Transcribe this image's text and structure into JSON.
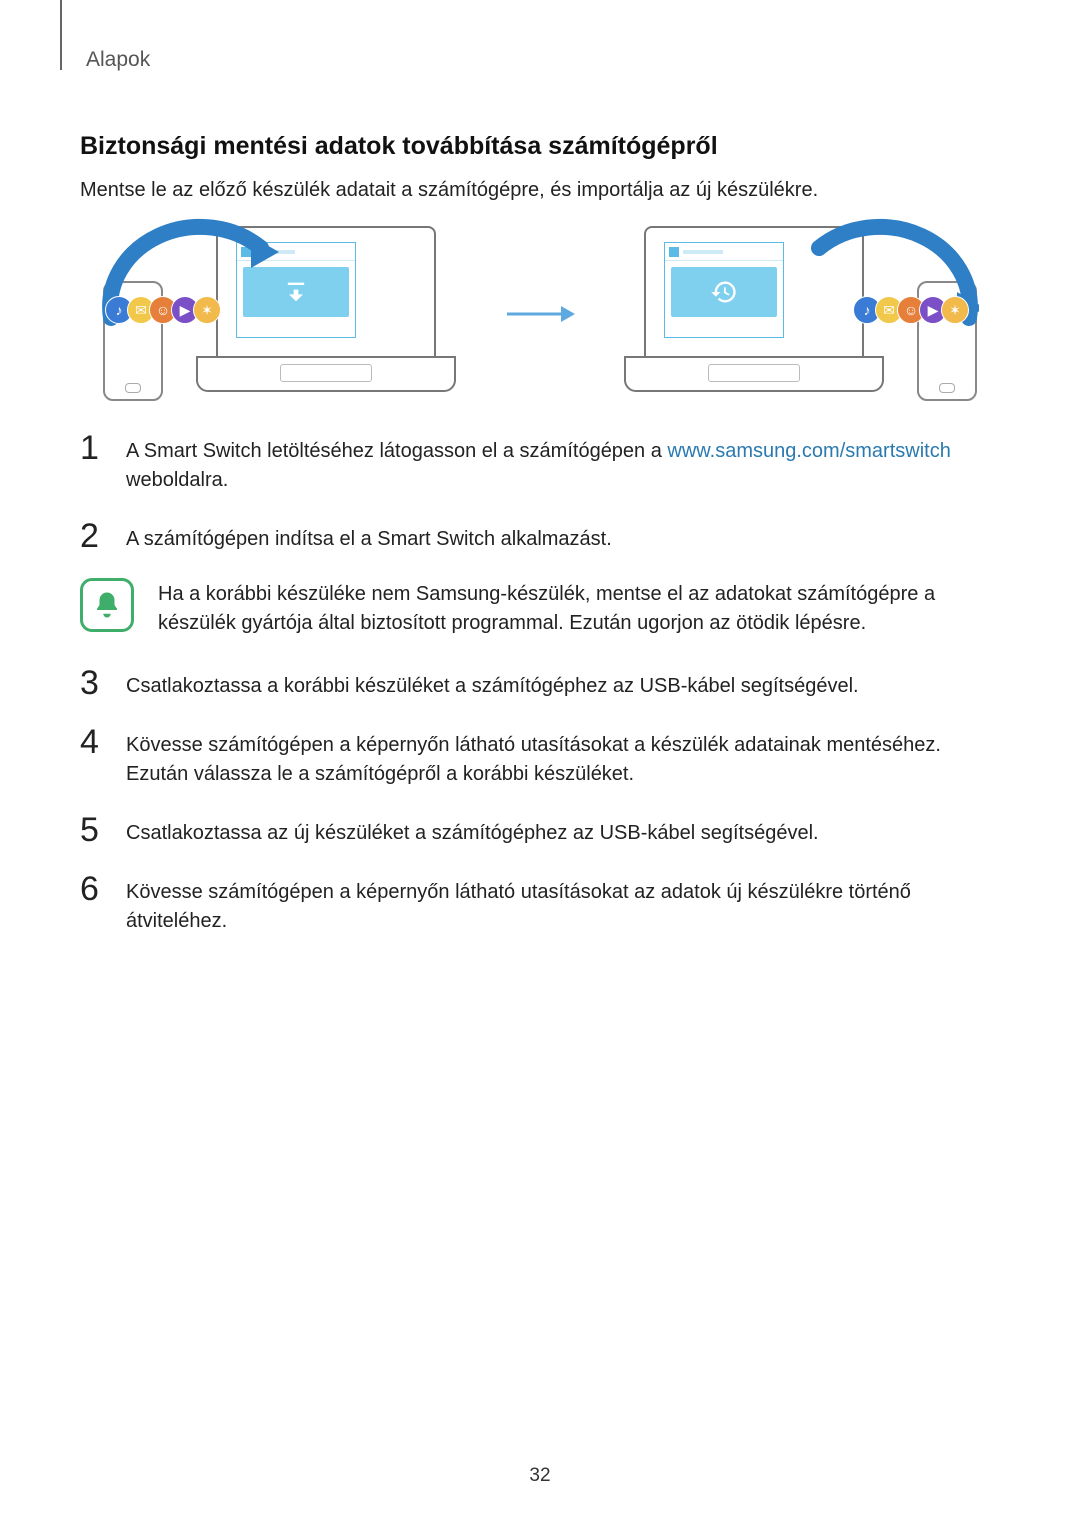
{
  "section_label": "Alapok",
  "heading": "Biztonsági mentési adatok továbbítása számítógépről",
  "intro": "Mentse le az előző készülék adatait a számítógépre, és importálja az új készülékre.",
  "link_url_text": "www.samsung.com/smartswitch",
  "steps": {
    "s1_a": "A Smart Switch letöltéséhez látogasson el a számítógépen a ",
    "s1_b": " weboldalra.",
    "s2": "A számítógépen indítsa el a Smart Switch alkalmazást.",
    "s3": "Csatlakoztassa a korábbi készüléket a számítógéphez az USB-kábel segítségével.",
    "s4": "Kövesse számítógépen a képernyőn látható utasításokat a készülék adatainak mentéséhez. Ezután válassza le a számítógépről a korábbi készüléket.",
    "s5": "Csatlakoztassa az új készüléket a számítógéphez az USB-kábel segítségével.",
    "s6": "Kövesse számítógépen a képernyőn látható utasításokat az adatok új készülékre történő átviteléhez."
  },
  "note_text": "Ha a korábbi készüléke nem Samsung-készülék, mentse el az adatokat számítógépre a készülék gyártója által biztosított programmal. Ezután ugorjon az ötödik lépésre.",
  "page_number": "32",
  "colors": {
    "link": "#2a7ab0",
    "note_border": "#3fae6a",
    "arc": "#2f7fc6",
    "app_blue": "#7fd0ee"
  },
  "icon_cluster": [
    {
      "bg": "#3a7bd5",
      "glyph": "♪"
    },
    {
      "bg": "#f2c84b",
      "glyph": "✉"
    },
    {
      "bg": "#e57f3a",
      "glyph": "☺"
    },
    {
      "bg": "#7b4fc6",
      "glyph": "▶"
    },
    {
      "bg": "#f2b94b",
      "glyph": "✶"
    }
  ]
}
